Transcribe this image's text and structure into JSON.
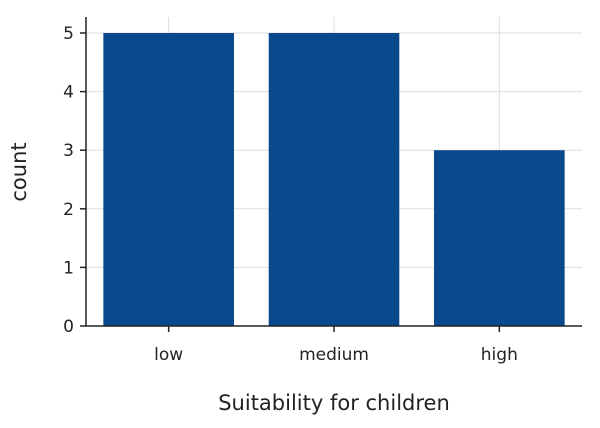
{
  "colors": {
    "bar": "#08488c",
    "grid": "#dddddd",
    "axis": "#222222"
  },
  "chart_data": {
    "type": "bar",
    "categories": [
      "low",
      "medium",
      "high"
    ],
    "values": [
      5,
      5,
      3
    ],
    "xlabel": "Suitability for children",
    "ylabel": "count",
    "ylim": [
      0,
      5
    ],
    "yticks": [
      "0",
      "1",
      "2",
      "3",
      "4",
      "5"
    ],
    "grid": true,
    "legend": "none"
  }
}
